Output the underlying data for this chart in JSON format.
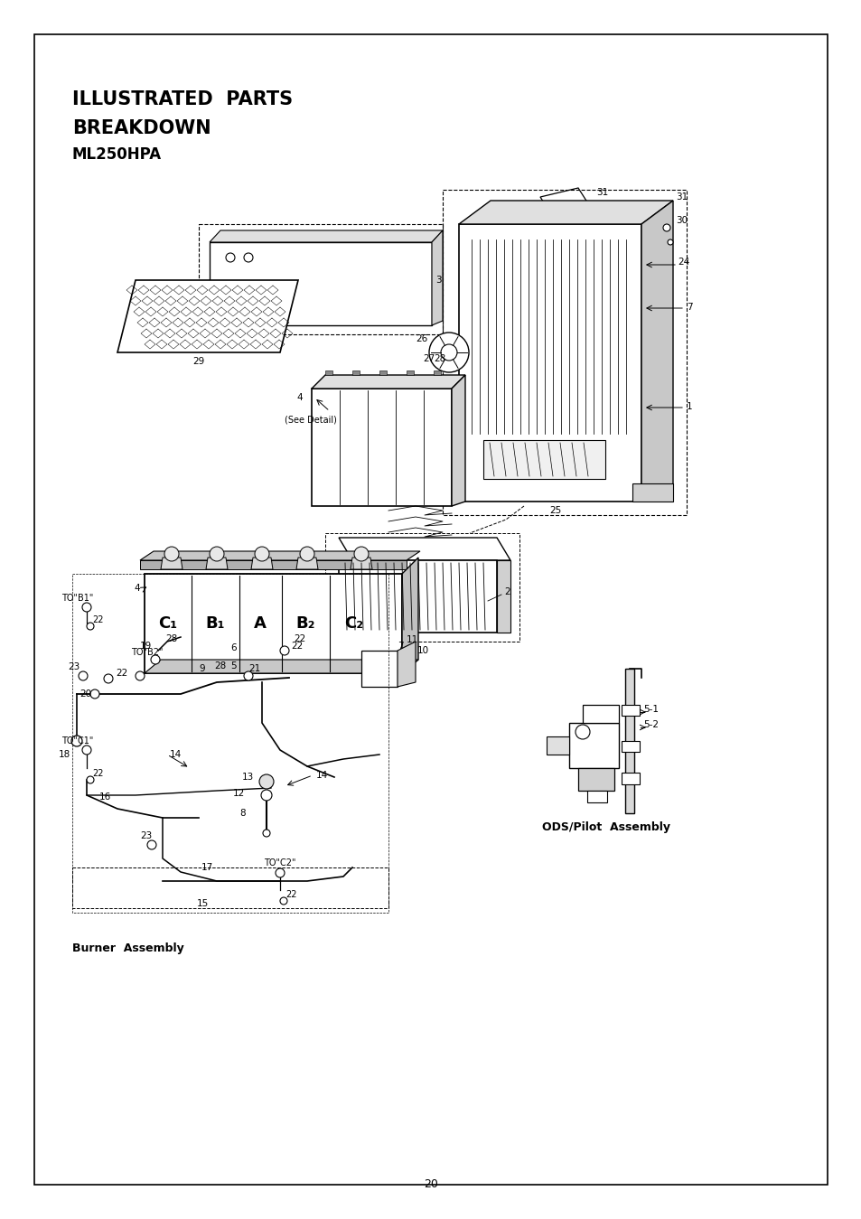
{
  "title_line1": "ILLUSTRATED  PARTS",
  "title_line2": "BREAKDOWN",
  "title_line3": "ML250HPA",
  "page_number": "20",
  "border_color": "#000000",
  "bg_color": "#ffffff",
  "text_color": "#000000",
  "burner_label": "Burner  Assembly",
  "ods_label": "ODS/Pilot  Assembly",
  "see_detail_label": "(See Detail)",
  "fig_width": 9.54,
  "fig_height": 13.49
}
